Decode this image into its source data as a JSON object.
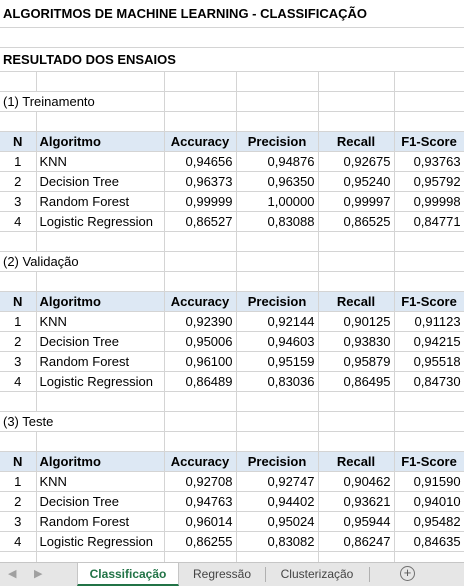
{
  "title": "ALGORITMOS DE MACHINE LEARNING - CLASSIFICAÇÃO",
  "subtitle": "RESULTADO DOS ENSAIOS",
  "headers": [
    "N",
    "Algoritmo",
    "Accuracy",
    "Precision",
    "Recall",
    "F1-Score"
  ],
  "sections": [
    {
      "label": "(1) Treinamento",
      "rows": [
        [
          "1",
          "KNN",
          "0,94656",
          "0,94876",
          "0,92675",
          "0,93763"
        ],
        [
          "2",
          "Decision Tree",
          "0,96373",
          "0,96350",
          "0,95240",
          "0,95792"
        ],
        [
          "3",
          "Random Forest",
          "0,99999",
          "1,00000",
          "0,99997",
          "0,99998"
        ],
        [
          "4",
          "Logistic Regression",
          "0,86527",
          "0,83088",
          "0,86525",
          "0,84771"
        ]
      ]
    },
    {
      "label": "(2) Validação",
      "rows": [
        [
          "1",
          "KNN",
          "0,92390",
          "0,92144",
          "0,90125",
          "0,91123"
        ],
        [
          "2",
          "Decision Tree",
          "0,95006",
          "0,94603",
          "0,93830",
          "0,94215"
        ],
        [
          "3",
          "Random Forest",
          "0,96100",
          "0,95159",
          "0,95879",
          "0,95518"
        ],
        [
          "4",
          "Logistic Regression",
          "0,86489",
          "0,83036",
          "0,86495",
          "0,84730"
        ]
      ]
    },
    {
      "label": "(3) Teste",
      "rows": [
        [
          "1",
          "KNN",
          "0,92708",
          "0,92747",
          "0,90462",
          "0,91590"
        ],
        [
          "2",
          "Decision Tree",
          "0,94763",
          "0,94402",
          "0,93621",
          "0,94010"
        ],
        [
          "3",
          "Random Forest",
          "0,96014",
          "0,95024",
          "0,95944",
          "0,95482"
        ],
        [
          "4",
          "Logistic Regression",
          "0,86255",
          "0,83082",
          "0,86247",
          "0,84635"
        ]
      ]
    }
  ],
  "tabs": [
    "Classificação",
    "Regressão",
    "Clusterização"
  ],
  "active_tab": "Classificação",
  "add_sheet_glyph": "+",
  "colors": {
    "header_fill": "#dde8f4",
    "active_tab_text": "#217346"
  }
}
